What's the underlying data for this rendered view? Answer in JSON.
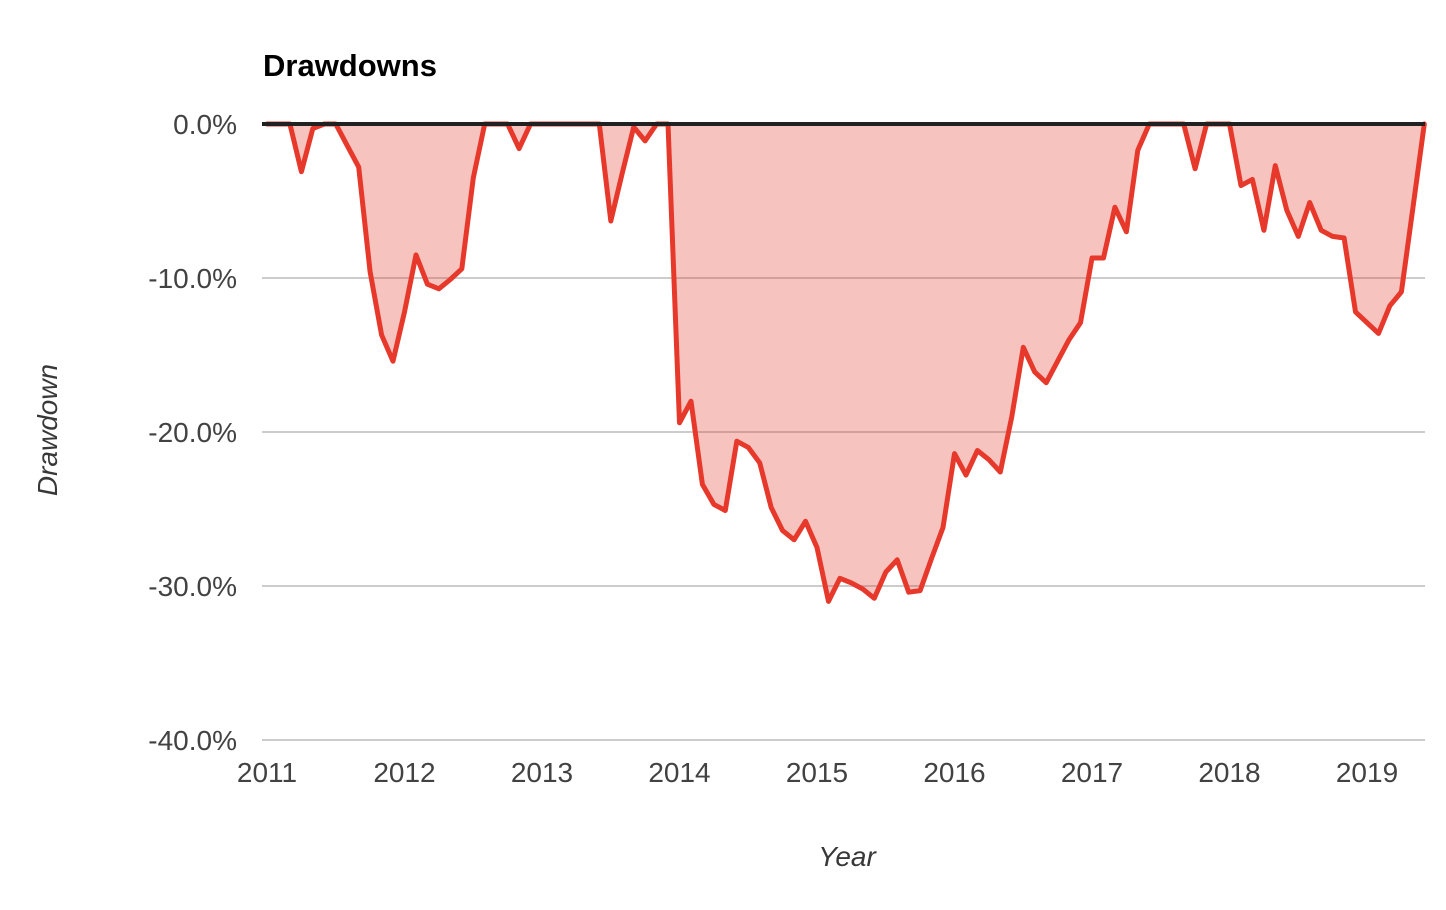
{
  "chart_data": {
    "type": "area",
    "title": "Drawdowns",
    "xlabel": "Year",
    "ylabel": "Drawdown",
    "frequency": "monthly",
    "x_start": "2011-01",
    "x_end": "2019-06",
    "ylim": [
      -40,
      0
    ],
    "grid": true,
    "legend": "none",
    "series": [
      {
        "name": "Drawdown",
        "values": [
          0,
          0,
          0,
          -3.1,
          -0.3,
          0,
          0,
          -1.4,
          -2.8,
          -9.6,
          -13.7,
          -15.4,
          -12.2,
          -8.5,
          -10.4,
          -10.7,
          -10.1,
          -9.4,
          -3.5,
          0,
          0,
          0,
          -1.6,
          0,
          0,
          0,
          0,
          0,
          0,
          0,
          -6.3,
          -3.2,
          -0.2,
          -1.1,
          0,
          0,
          -19.4,
          -18.0,
          -23.4,
          -24.7,
          -25.1,
          -20.6,
          -21.0,
          -22.0,
          -24.9,
          -26.4,
          -27.0,
          -25.8,
          -27.5,
          -31.0,
          -29.5,
          -29.8,
          -30.2,
          -30.8,
          -29.1,
          -28.3,
          -30.4,
          -30.3,
          -28.2,
          -26.2,
          -21.4,
          -22.8,
          -21.2,
          -21.8,
          -22.6,
          -19.0,
          -14.5,
          -16.1,
          -16.8,
          -15.4,
          -14.0,
          -12.9,
          -8.7,
          -8.7,
          -5.4,
          -7.0,
          -1.7,
          0,
          0,
          0,
          0,
          -2.9,
          0,
          0,
          0,
          -4.0,
          -3.6,
          -6.9,
          -2.7,
          -5.6,
          -7.3,
          -5.1,
          -6.9,
          -7.3,
          -7.4,
          -12.2,
          -12.9,
          -13.6,
          -11.8,
          -10.9,
          -5.5,
          0
        ]
      }
    ],
    "y_ticks": [
      {
        "value": 0,
        "label": "0.0%"
      },
      {
        "value": -10,
        "label": "-10.0%"
      },
      {
        "value": -20,
        "label": "-20.0%"
      },
      {
        "value": -30,
        "label": "-30.0%"
      },
      {
        "value": -40,
        "label": "-40.0%"
      }
    ],
    "x_ticks": [
      "2011",
      "2012",
      "2013",
      "2014",
      "2015",
      "2016",
      "2017",
      "2018",
      "2019"
    ],
    "colors": {
      "line": "#e6392b",
      "fill": "#e6392b",
      "fill_opacity": 0.3,
      "zero_line": "#212121",
      "gridline": "#cccccc",
      "tick_text": "#424242",
      "title_text": "#000000",
      "axis_title_text": "#383838"
    }
  }
}
